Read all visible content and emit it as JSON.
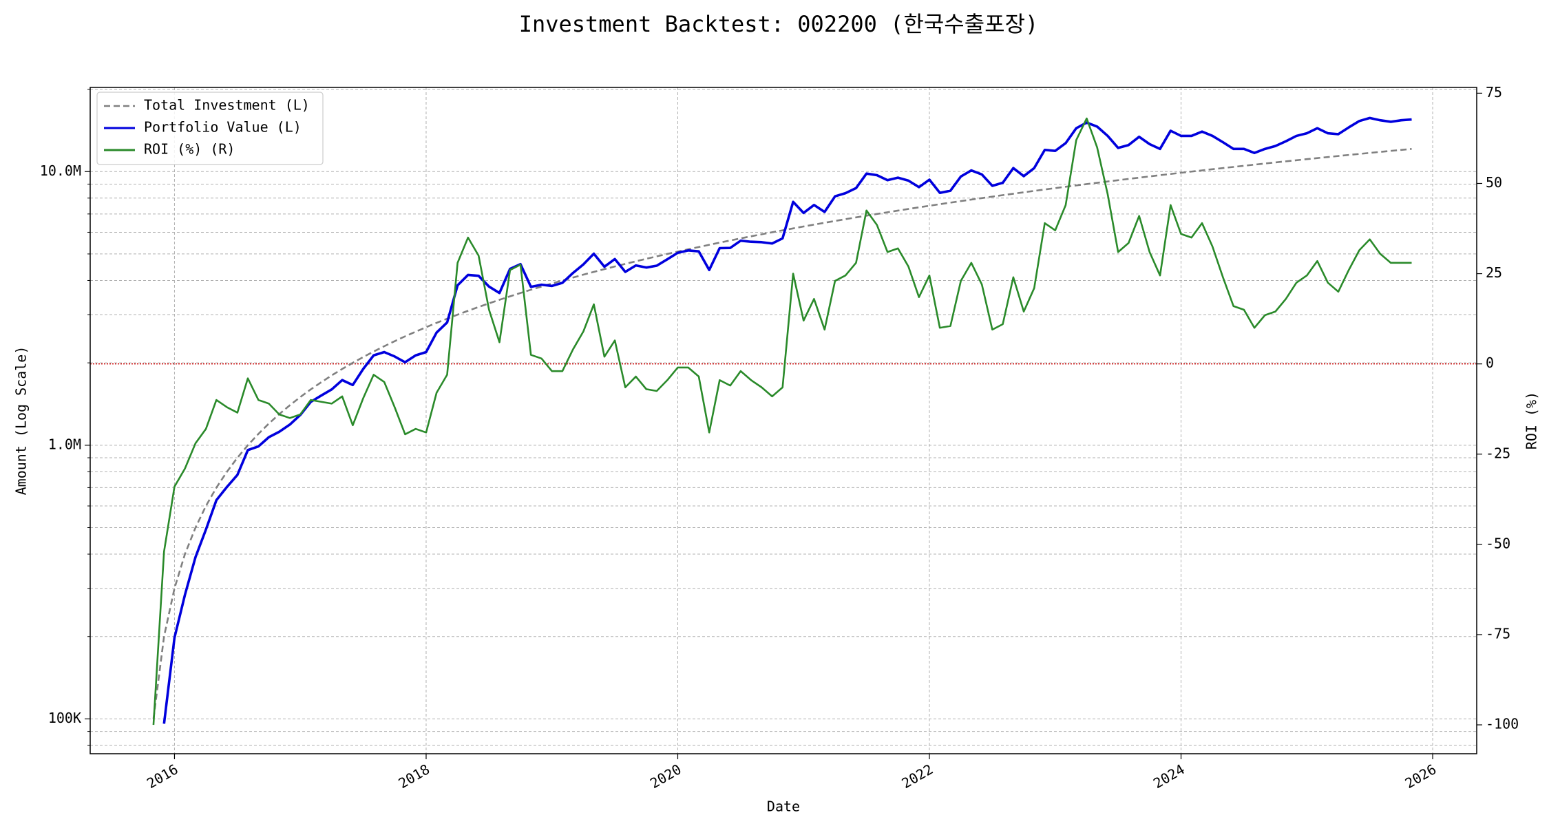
{
  "chart_data": {
    "type": "line",
    "title": "Investment Backtest: 002200 (한국수출포장)",
    "xlabel": "Date",
    "ylabel": "Amount (Log Scale)",
    "y2label": "ROI (%)",
    "ycolor": "#0000cc",
    "y2color": "#2a8a2a",
    "xlim": [
      2015.33,
      2026.35
    ],
    "xticks": [
      2016,
      2018,
      2020,
      2022,
      2024,
      2026
    ],
    "ylim": [
      74600,
      20300000
    ],
    "yscale": "log",
    "yticks": [
      {
        "value": 100000,
        "label": "100K"
      },
      {
        "value": 1000000,
        "label": "1.0M"
      },
      {
        "value": 10000000,
        "label": "10.0M"
      }
    ],
    "yminorticks": [
      80000,
      90000,
      200000,
      300000,
      400000,
      500000,
      600000,
      700000,
      800000,
      900000,
      2000000,
      3000000,
      4000000,
      5000000,
      6000000,
      7000000,
      8000000,
      9000000,
      20000000
    ],
    "y2lim": [
      -108,
      76.6
    ],
    "y2ticks": [
      -100,
      -75,
      -50,
      -25,
      0,
      25,
      50,
      75
    ],
    "grid": true,
    "legend": "upper left",
    "hlines": [
      {
        "value": 0,
        "axis": "y2",
        "color": "#cc0000"
      }
    ],
    "x": [
      2015.833,
      2015.917,
      2016,
      2016.083,
      2016.167,
      2016.25,
      2016.333,
      2016.417,
      2016.5,
      2016.583,
      2016.667,
      2016.75,
      2016.833,
      2016.917,
      2017,
      2017.083,
      2017.167,
      2017.25,
      2017.333,
      2017.417,
      2017.5,
      2017.583,
      2017.667,
      2017.75,
      2017.833,
      2017.917,
      2018,
      2018.083,
      2018.167,
      2018.25,
      2018.333,
      2018.417,
      2018.5,
      2018.583,
      2018.667,
      2018.75,
      2018.833,
      2018.917,
      2019,
      2019.083,
      2019.167,
      2019.25,
      2019.333,
      2019.417,
      2019.5,
      2019.583,
      2019.667,
      2019.75,
      2019.833,
      2019.917,
      2020,
      2020.083,
      2020.167,
      2020.25,
      2020.333,
      2020.417,
      2020.5,
      2020.583,
      2020.667,
      2020.75,
      2020.833,
      2020.917,
      2021,
      2021.083,
      2021.167,
      2021.25,
      2021.333,
      2021.417,
      2021.5,
      2021.583,
      2021.667,
      2021.75,
      2021.833,
      2021.917,
      2022,
      2022.083,
      2022.167,
      2022.25,
      2022.333,
      2022.417,
      2022.5,
      2022.583,
      2022.667,
      2022.75,
      2022.833,
      2022.917,
      2023,
      2023.083,
      2023.167,
      2023.25,
      2023.333,
      2023.417,
      2023.5,
      2023.583,
      2023.667,
      2023.75,
      2023.833,
      2023.917,
      2024,
      2024.083,
      2024.167,
      2024.25,
      2024.333,
      2024.417,
      2024.5,
      2024.583,
      2024.667,
      2024.75,
      2024.833,
      2024.917,
      2025,
      2025.083,
      2025.167,
      2025.25,
      2025.333,
      2025.417,
      2025.5,
      2025.583,
      2025.667,
      2025.75,
      2025.833
    ],
    "series": [
      {
        "name": "Total Investment (L)",
        "color": "#808080",
        "style": "dashed",
        "axis": "y",
        "values": [
          100000,
          200000,
          300000,
          400000,
          500000,
          600000,
          700000,
          800000,
          900000,
          1000000,
          1100000,
          1200000,
          1300000,
          1400000,
          1500000,
          1600000,
          1700000,
          1800000,
          1900000,
          2000000,
          2100000,
          2200000,
          2300000,
          2400000,
          2500000,
          2600000,
          2700000,
          2800000,
          2900000,
          3000000,
          3100000,
          3200000,
          3300000,
          3400000,
          3500000,
          3600000,
          3700000,
          3800000,
          3900000,
          4000000,
          4100000,
          4200000,
          4300000,
          4400000,
          4500000,
          4600000,
          4700000,
          4800000,
          4900000,
          5000000,
          5100000,
          5200000,
          5300000,
          5400000,
          5500000,
          5600000,
          5700000,
          5800000,
          5900000,
          6000000,
          6100000,
          6200000,
          6300000,
          6400000,
          6500000,
          6600000,
          6700000,
          6800000,
          6900000,
          7000000,
          7100000,
          7200000,
          7300000,
          7400000,
          7500000,
          7600000,
          7700000,
          7800000,
          7900000,
          8000000,
          8100000,
          8200000,
          8300000,
          8400000,
          8500000,
          8600000,
          8700000,
          8800000,
          8900000,
          9000000,
          9100000,
          9200000,
          9300000,
          9400000,
          9500000,
          9600000,
          9700000,
          9800000,
          9900000,
          10000000,
          10100000,
          10200000,
          10300000,
          10400000,
          10500000,
          10600000,
          10700000,
          10800000,
          10900000,
          11000000,
          11100000,
          11200000,
          11300000,
          11400000,
          11500000,
          11600000,
          11700000,
          11800000,
          11900000,
          12000000,
          12100000
        ]
      },
      {
        "name": "Portfolio Value (L)",
        "color": "#0000dd",
        "style": "solid",
        "axis": "y",
        "values": [
          null,
          96000,
          198000,
          284000,
          390000,
          492000,
          630000,
          704000,
          779000,
          960000,
          990000,
          1070000,
          1120000,
          1190000,
          1290000,
          1440000,
          1520000,
          1600000,
          1730000,
          1660000,
          1900000,
          2130000,
          2190000,
          2110000,
          2010000,
          2130000,
          2190000,
          2580000,
          2810000,
          3840000,
          4190000,
          4160000,
          3800000,
          3600000,
          4410000,
          4590000,
          3790000,
          3860000,
          3820000,
          3920000,
          4260000,
          4580000,
          5010000,
          4490000,
          4790000,
          4300000,
          4540000,
          4460000,
          4530000,
          4780000,
          5050000,
          5150000,
          5110000,
          4370000,
          5250000,
          5260000,
          5590000,
          5540000,
          5520000,
          5460000,
          5700000,
          7750000,
          7060000,
          7550000,
          7120000,
          8120000,
          8340000,
          8700000,
          9830000,
          9700000,
          9300000,
          9500000,
          9270000,
          8770000,
          9340000,
          8360000,
          8510000,
          9590000,
          10100000,
          9760000,
          8870000,
          9100000,
          10300000,
          9620000,
          10300000,
          12000000,
          11900000,
          12700000,
          14400000,
          15100000,
          14600000,
          13500000,
          12200000,
          12500000,
          13400000,
          12600000,
          12100000,
          14100000,
          13500000,
          13500000,
          14000000,
          13500000,
          12800000,
          12100000,
          12100000,
          11700000,
          12100000,
          12400000,
          12900000,
          13500000,
          13800000,
          14400000,
          13800000,
          13700000,
          14500000,
          15300000,
          15700000,
          15400000,
          15200000,
          15400000,
          15500000
        ]
      },
      {
        "name": "ROI (%) (R)",
        "color": "#2a8a2a",
        "style": "solid",
        "axis": "y2",
        "values": [
          -100,
          -52,
          -34,
          -29,
          -22,
          -18,
          -10,
          -12,
          -13.5,
          -4,
          -10,
          -11,
          -14,
          -15,
          -14,
          -10,
          -10.5,
          -11,
          -9,
          -17,
          -9.5,
          -3,
          -5,
          -12,
          -19.5,
          -18,
          -19,
          -8,
          -3,
          28,
          35,
          30,
          15,
          6,
          26,
          27.5,
          2.5,
          1.5,
          -2,
          -2,
          4,
          9,
          16.5,
          2,
          6.5,
          -6.5,
          -3.5,
          -7,
          -7.5,
          -4.5,
          -1,
          -1,
          -3.5,
          -19,
          -4.5,
          -6,
          -2,
          -4.5,
          -6.5,
          -9,
          -6.5,
          25,
          12,
          18,
          9.5,
          23,
          24.5,
          28,
          42.5,
          38.5,
          31,
          32,
          27,
          18.5,
          24.5,
          10,
          10.5,
          23,
          28,
          22,
          9.5,
          11,
          24,
          14.5,
          21,
          39,
          37,
          44,
          62,
          68,
          60,
          47,
          31,
          33.5,
          41,
          31,
          24.5,
          44,
          36,
          35,
          39,
          32.5,
          24,
          16,
          15,
          10,
          13.5,
          14.5,
          18,
          22.5,
          24.5,
          28.5,
          22.5,
          20,
          26,
          31.5,
          34.5,
          30.5,
          28,
          28,
          28
        ]
      }
    ]
  }
}
